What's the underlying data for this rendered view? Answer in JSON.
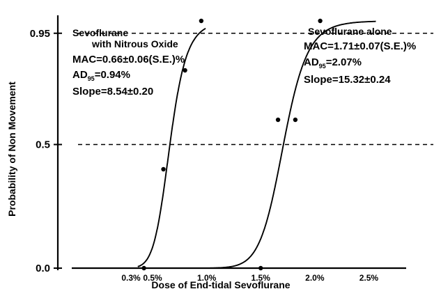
{
  "chart_data": {
    "type": "line",
    "title": "",
    "xlabel": "Dose of End-tidal Sevoflurane",
    "ylabel": "Probability of Non Movement",
    "ylim": [
      0,
      1
    ],
    "y_ticks": [
      {
        "label": "0.0",
        "value": 0.0
      },
      {
        "label": "0.5",
        "value": 0.5
      },
      {
        "label": "0.95",
        "value": 0.95
      }
    ],
    "x_ticks": [
      {
        "label": "0.3%",
        "value": 0.3
      },
      {
        "label": "0.5%",
        "value": 0.5
      },
      {
        "label": "1.0%",
        "value": 1.0
      },
      {
        "label": "1.5%",
        "value": 1.5
      },
      {
        "label": "2.0%",
        "value": 2.0
      },
      {
        "label": "2.5%",
        "value": 2.5
      }
    ],
    "reference_lines": [
      0.95,
      0.5
    ],
    "series": [
      {
        "mac": 0.66,
        "slope": 8.54,
        "points": [
          {
            "x": 0.42,
            "y": 0.0
          },
          {
            "x": 0.6,
            "y": 0.4
          },
          {
            "x": 0.8,
            "y": 0.8
          },
          {
            "x": 0.95,
            "y": 1.0
          }
        ]
      },
      {
        "mac": 1.71,
        "slope": 15.32,
        "points": [
          {
            "x": 1.5,
            "y": 0.0
          },
          {
            "x": 1.66,
            "y": 0.6
          },
          {
            "x": 1.82,
            "y": 0.6
          },
          {
            "x": 2.05,
            "y": 1.0
          }
        ]
      }
    ],
    "annotations": {
      "left": {
        "line1": "Sevoflurane",
        "line2": "with Nitrous Oxide",
        "mac": "MAC=0.66±0.06(S.E.)%",
        "ad_prefix": "AD",
        "ad_sub": "95",
        "ad_value": "=0.94%",
        "slope": "Slope=8.54±0.20"
      },
      "right": {
        "line1": "Sevoflurane alone",
        "mac": "MAC=1.71±0.07(S.E.)%",
        "ad_prefix": "AD",
        "ad_sub": "95",
        "ad_value": "=2.07%",
        "slope": "Slope=15.32±0.24"
      }
    }
  }
}
